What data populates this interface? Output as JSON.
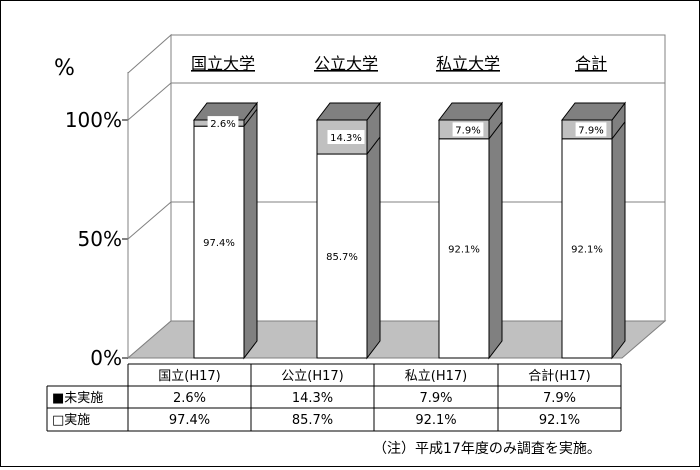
{
  "chart_data": {
    "type": "bar",
    "stacked": true,
    "percent": true,
    "three_d": true,
    "unit_label": "%",
    "y_ticks": [
      "0%",
      "50%",
      "100%"
    ],
    "ylim": [
      0,
      100
    ],
    "group_labels": [
      "国立大学",
      "公立大学",
      "私立大学",
      "合計"
    ],
    "categories": [
      "国立(H17)",
      "公立(H17)",
      "私立(H17)",
      "合計(H17)"
    ],
    "series": [
      {
        "name": "実施",
        "values": [
          97.4,
          85.7,
          92.1,
          92.1
        ],
        "color": "#ffffff",
        "labels": [
          "97.4%",
          "85.7%",
          "92.1%",
          "92.1%"
        ]
      },
      {
        "name": "未実施",
        "values": [
          2.6,
          14.3,
          7.9,
          7.9
        ],
        "color": "#c0c0c0",
        "labels": [
          "2.6%",
          "14.3%",
          "7.9%",
          "7.9%"
        ]
      }
    ],
    "table": {
      "rows": [
        {
          "legend": "■未実施",
          "cells": [
            "2.6%",
            "14.3%",
            "7.9%",
            "7.9%"
          ]
        },
        {
          "legend": "□実施",
          "cells": [
            "97.4%",
            "85.7%",
            "92.1%",
            "92.1%"
          ]
        }
      ]
    },
    "note": "（注）平成17年度のみ調査を実施。",
    "grid": true
  }
}
